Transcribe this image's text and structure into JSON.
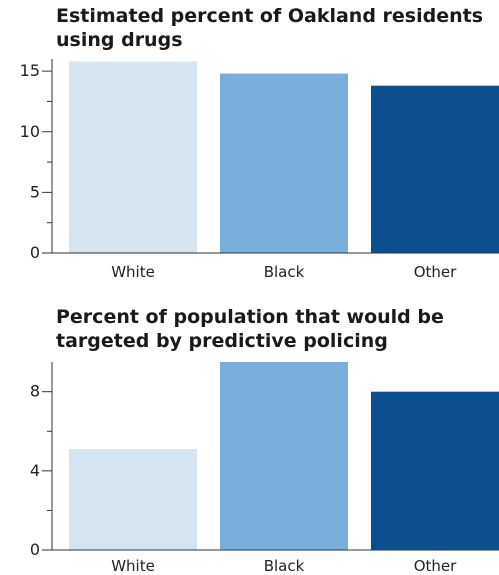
{
  "chart_data": [
    {
      "type": "bar",
      "title_lines": [
        "Estimated percent of Oakland residents",
        "using drugs"
      ],
      "categories": [
        "White",
        "Black",
        "Other"
      ],
      "values": [
        15.8,
        14.8,
        13.8
      ],
      "colors": [
        "#d4e4f1",
        "#7aaedb",
        "#0b4f8e"
      ],
      "yticks": [
        0,
        5,
        10,
        15
      ],
      "minor_ticks": true,
      "ylim": [
        0,
        16
      ],
      "xlabel": "",
      "ylabel": "",
      "grid": false,
      "legend": "none"
    },
    {
      "type": "bar",
      "title_lines": [
        "Percent of population that would be",
        "targeted by predictive policing"
      ],
      "categories": [
        "White",
        "Black",
        "Other"
      ],
      "values": [
        5.1,
        9.5,
        8.0
      ],
      "colors": [
        "#d4e4f1",
        "#7aaedb",
        "#0b4f8e"
      ],
      "yticks": [
        0,
        4,
        8
      ],
      "minor_ticks": true,
      "ylim": [
        0,
        9.5
      ],
      "xlabel": "",
      "ylabel": "",
      "grid": false,
      "legend": "none"
    }
  ]
}
